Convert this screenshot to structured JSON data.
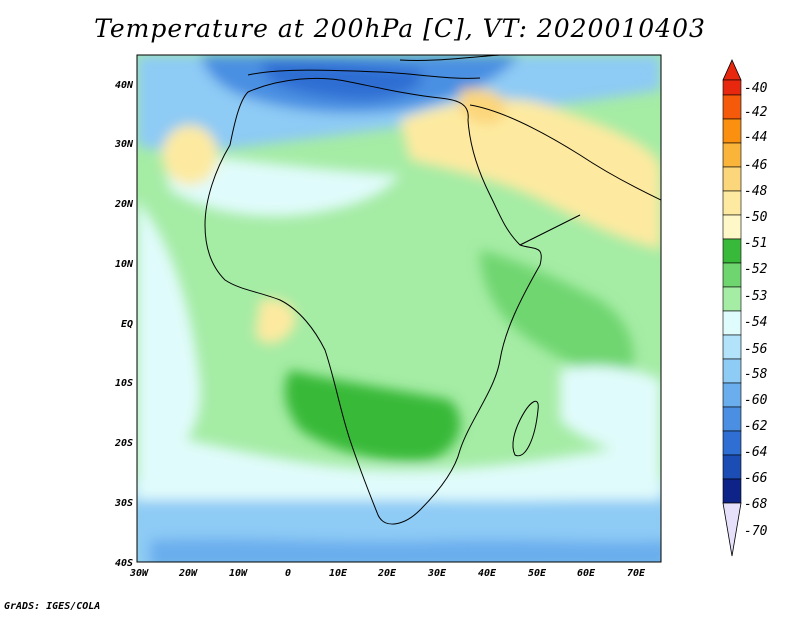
{
  "title": "Temperature at 200hPa [C], VT: 2020010403",
  "credit": "GrADS: IGES/COLA",
  "map": {
    "lat_ticks": [
      "40N",
      "30N",
      "20N",
      "10N",
      "EQ",
      "10S",
      "20S",
      "30S",
      "40S"
    ],
    "lon_ticks": [
      "30W",
      "20W",
      "10W",
      "0",
      "10E",
      "20E",
      "30E",
      "40E",
      "50E",
      "60E",
      "70E"
    ]
  },
  "colorbar": {
    "labels": [
      "-40",
      "-42",
      "-44",
      "-46",
      "-48",
      "-50",
      "-51",
      "-52",
      "-53",
      "-54",
      "-56",
      "-58",
      "-60",
      "-62",
      "-64",
      "-66",
      "-68",
      "-70"
    ],
    "colors": {
      "c40": "#e8280e",
      "c42": "#f45a0a",
      "c44": "#fa8f10",
      "c46": "#fbb43a",
      "c48": "#fcd67a",
      "c50": "#fdeaa0",
      "c51": "#fef7c8",
      "c52": "#39b939",
      "c53": "#6fd66f",
      "c54": "#a5eca5",
      "c56": "#e0fbfb",
      "c58": "#b2e3fa",
      "c60": "#8ecbf5",
      "c62": "#6aaeee",
      "c64": "#4a8fe2",
      "c66": "#2f6ed3",
      "c68": "#1b4db5",
      "c70": "#0d2388"
    }
  }
}
